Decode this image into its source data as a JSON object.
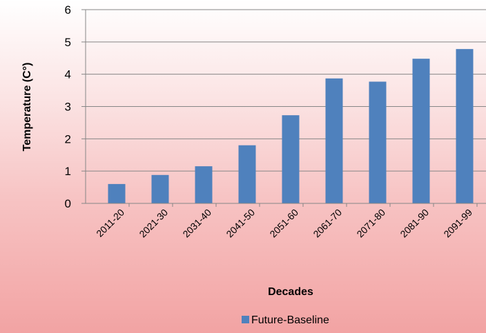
{
  "chart_data": {
    "type": "bar",
    "categories": [
      "2011-20",
      "2021-30",
      "2031-40",
      "2041-50",
      "2051-60",
      "2061-70",
      "2071-80",
      "2081-90",
      "2091-99"
    ],
    "series": [
      {
        "name": "Future-Baseline",
        "values": [
          0.6,
          0.88,
          1.15,
          1.8,
          2.73,
          3.87,
          3.77,
          4.48,
          4.78
        ]
      }
    ],
    "xlabel": "Decades",
    "ylabel": "Temperature (C°)",
    "ylim": [
      0,
      6
    ],
    "yticks": [
      0,
      1,
      2,
      3,
      4,
      5,
      6
    ],
    "grid": true,
    "legend": "bottom",
    "colors": {
      "bar": "#4f81bd",
      "grid": "#868686"
    }
  }
}
